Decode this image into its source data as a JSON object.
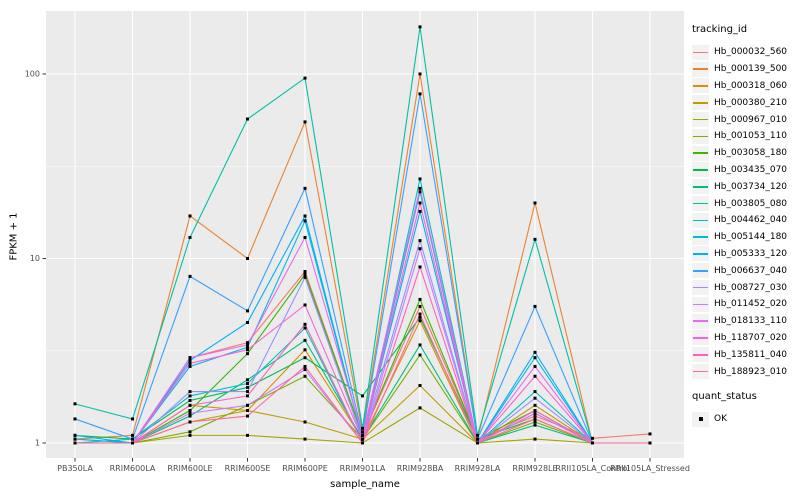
{
  "axes": {
    "x_title": "sample_name",
    "y_title": "FPKM + 1"
  },
  "legend": {
    "tracking_title": "tracking_id",
    "quant_title": "quant_status",
    "quant_value": "OK"
  },
  "chart_data": {
    "type": "line",
    "title": "",
    "xlabel": "sample_name",
    "ylabel": "FPKM + 1",
    "y_scale": "log10",
    "y_ticks": [
      1,
      10,
      100
    ],
    "y_tick_labels": [
      "1",
      "10",
      "100"
    ],
    "y_minor_gridlines": [
      3.162,
      31.62
    ],
    "ylim": [
      0.82,
      215
    ],
    "grid": true,
    "panel_bg": "#EBEBEB",
    "grid_color": "#FFFFFF",
    "axis_text_color": "#4D4D4D",
    "tick_color": "#333333",
    "point_shape": "filled-square",
    "point_color": "#000000",
    "legend_position": "right",
    "categories": [
      "PB350LA",
      "RRIM600LA",
      "RRIM600LE",
      "RRIM600SE",
      "RRIM600PE",
      "RRIM901LA",
      "RRIM928BA",
      "RRIM928LA",
      "RRIM928LE",
      "RRII105LA_Control",
      "RRII105LA_Stressed"
    ],
    "series": [
      {
        "name": "Hb_000032_560",
        "color": "#F8766D",
        "values": [
          1.05,
          1.0,
          2.9,
          3.5,
          8.5,
          1.1,
          5.5,
          1.05,
          1.4,
          1.06,
          1.12
        ]
      },
      {
        "name": "Hb_000139_500",
        "color": "#EA8331",
        "values": [
          1.05,
          1.1,
          17,
          10,
          55,
          1.15,
          100,
          1.05,
          20,
          1.0,
          1.0
        ]
      },
      {
        "name": "Hb_000318_060",
        "color": "#D89000",
        "values": [
          1.0,
          1.0,
          1.6,
          1.5,
          3.2,
          1.05,
          4.6,
          1.0,
          1.45,
          1.0,
          1.0
        ]
      },
      {
        "name": "Hb_000380_210",
        "color": "#C09B00",
        "values": [
          1.0,
          1.0,
          1.3,
          1.5,
          1.3,
          1.05,
          2.05,
          1.0,
          1.6,
          1.0,
          1.0
        ]
      },
      {
        "name": "Hb_000967_010",
        "color": "#A3A500",
        "values": [
          1.0,
          1.0,
          1.1,
          1.1,
          1.05,
          1.0,
          1.55,
          1.0,
          1.05,
          1.0,
          1.0
        ]
      },
      {
        "name": "Hb_001053_110",
        "color": "#7CAE00",
        "values": [
          1.0,
          1.0,
          1.15,
          1.6,
          2.3,
          1.05,
          3.0,
          1.0,
          1.3,
          1.0,
          1.0
        ]
      },
      {
        "name": "Hb_003058_180",
        "color": "#39B600",
        "values": [
          1.0,
          1.0,
          1.5,
          3.05,
          8.2,
          1.1,
          6.0,
          1.05,
          1.5,
          1.0,
          1.0
        ]
      },
      {
        "name": "Hb_003435_070",
        "color": "#00BB4E",
        "values": [
          1.1,
          1.05,
          1.7,
          2.0,
          2.9,
          1.8,
          4.8,
          1.05,
          1.35,
          1.0,
          1.0
        ]
      },
      {
        "name": "Hb_003734_120",
        "color": "#00BF7D",
        "values": [
          1.0,
          1.0,
          1.4,
          2.2,
          3.6,
          1.05,
          3.4,
          1.0,
          1.25,
          1.0,
          1.0
        ]
      },
      {
        "name": "Hb_003805_080",
        "color": "#00C1A3",
        "values": [
          1.63,
          1.35,
          13,
          57,
          95,
          1.2,
          180,
          1.1,
          12.7,
          1.0,
          1.0
        ]
      },
      {
        "name": "Hb_004462_040",
        "color": "#00BFC4",
        "values": [
          1.0,
          1.05,
          1.8,
          2.1,
          4.2,
          1.0,
          27,
          1.0,
          1.9,
          1.0,
          1.0
        ]
      },
      {
        "name": "Hb_005144_180",
        "color": "#00BAE0",
        "values": [
          1.05,
          1.0,
          2.6,
          3.3,
          16,
          1.05,
          23,
          1.0,
          2.9,
          1.0,
          1.0
        ]
      },
      {
        "name": "Hb_005333_120",
        "color": "#00B0F6",
        "values": [
          1.1,
          1.0,
          2.8,
          4.5,
          17,
          1.05,
          18,
          1.0,
          3.1,
          1.0,
          1.0
        ]
      },
      {
        "name": "Hb_006637_040",
        "color": "#35A2FF",
        "values": [
          1.35,
          1.05,
          8.0,
          5.2,
          24,
          1.1,
          78,
          1.05,
          5.5,
          1.0,
          1.0
        ]
      },
      {
        "name": "Hb_008727_030",
        "color": "#9590FF",
        "values": [
          1.0,
          1.0,
          1.9,
          1.9,
          7.9,
          1.05,
          12.5,
          1.0,
          1.75,
          1.0,
          1.0
        ]
      },
      {
        "name": "Hb_011452_020",
        "color": "#C77CFF",
        "values": [
          1.0,
          1.0,
          1.45,
          1.6,
          2.5,
          1.0,
          11.3,
          1.0,
          1.45,
          1.0,
          1.0
        ]
      },
      {
        "name": "Hb_018133_110",
        "color": "#E76BF3",
        "values": [
          1.0,
          1.0,
          2.9,
          3.4,
          13,
          1.1,
          24,
          1.0,
          2.6,
          1.0,
          1.0
        ]
      },
      {
        "name": "Hb_118707_020",
        "color": "#FA62DB",
        "values": [
          1.0,
          1.0,
          2.7,
          3.2,
          5.6,
          1.05,
          20,
          1.0,
          2.3,
          1.0,
          1.0
        ]
      },
      {
        "name": "Hb_135811_040",
        "color": "#FF62BC",
        "values": [
          1.0,
          1.0,
          1.6,
          1.8,
          4.4,
          1.0,
          9.0,
          1.0,
          1.5,
          1.0,
          1.0
        ]
      },
      {
        "name": "Hb_188923_010",
        "color": "#FF6A98",
        "values": [
          1.0,
          1.0,
          1.3,
          1.4,
          2.6,
          1.0,
          5.0,
          1.0,
          1.35,
          1.0,
          1.0
        ]
      }
    ]
  }
}
